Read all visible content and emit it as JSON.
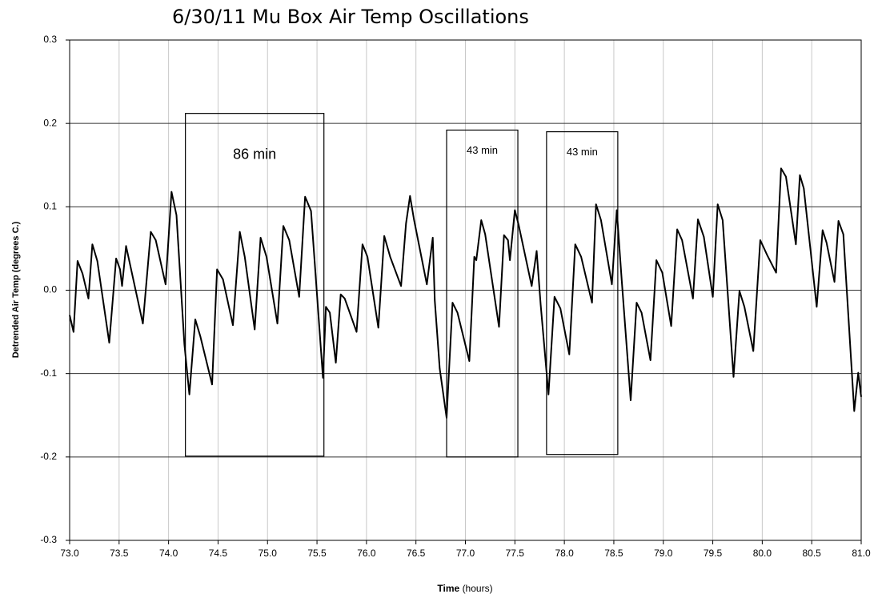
{
  "chart_data": {
    "type": "line",
    "title": "6/30/11 Mu Box Air Temp Oscillations",
    "xlabel": [
      "Time",
      "(hours)"
    ],
    "ylabel": "Detrended Air Temp (degrees C.)",
    "xlim": [
      73.0,
      81.0
    ],
    "ylim": [
      -0.3,
      0.3
    ],
    "xticks": [
      {
        "value": 73,
        "label": "73.0"
      },
      73.5,
      {
        "value": 74,
        "label": "74.0"
      },
      74.5,
      {
        "value": 75,
        "label": "75.0"
      },
      75.5,
      {
        "value": 76,
        "label": "76.0"
      },
      76.5,
      {
        "value": 77,
        "label": "77.0"
      },
      77.5,
      {
        "value": 78,
        "label": "78.0"
      },
      78.5,
      {
        "value": 79,
        "label": "79.0"
      },
      79.5,
      {
        "value": 80,
        "label": "80.0"
      },
      80.5,
      {
        "value": 81,
        "label": "81.0"
      }
    ],
    "yticks": [
      -0.3,
      -0.2,
      -0.1,
      {
        "value": 0,
        "label": "0.0"
      },
      0.1,
      0.2,
      0.3
    ],
    "grid": true,
    "series": [
      {
        "color": "#000000",
        "x": [
          73.0,
          73.04,
          73.08,
          73.13,
          73.19,
          73.23,
          73.28,
          73.4,
          73.47,
          73.51,
          73.53,
          73.57,
          73.74,
          73.82,
          73.87,
          73.97,
          74.03,
          74.08,
          74.16,
          74.21,
          74.27,
          74.32,
          74.44,
          74.49,
          74.55,
          74.65,
          74.72,
          74.77,
          74.87,
          74.93,
          74.99,
          75.1,
          75.16,
          75.22,
          75.32,
          75.38,
          75.44,
          75.56,
          75.59,
          75.63,
          75.69,
          75.74,
          75.78,
          75.9,
          75.96,
          76.01,
          76.12,
          76.18,
          76.24,
          76.35,
          76.4,
          76.44,
          76.48,
          76.61,
          76.67,
          76.69,
          76.74,
          76.81,
          76.87,
          76.92,
          77.04,
          77.09,
          77.11,
          77.16,
          77.2,
          77.34,
          77.39,
          77.43,
          77.45,
          77.5,
          77.54,
          77.67,
          77.72,
          77.76,
          77.84,
          77.9,
          77.96,
          78.05,
          78.11,
          78.17,
          78.28,
          78.32,
          78.37,
          78.48,
          78.53,
          78.58,
          78.67,
          78.73,
          78.78,
          78.87,
          78.93,
          78.99,
          79.08,
          79.14,
          79.19,
          79.3,
          79.35,
          79.41,
          79.5,
          79.55,
          79.6,
          79.71,
          79.77,
          79.82,
          79.91,
          79.98,
          80.05,
          80.14,
          80.19,
          80.24,
          80.34,
          80.38,
          80.42,
          80.55,
          80.61,
          80.65,
          80.73,
          80.77,
          80.82,
          80.93,
          80.97,
          81.0
        ],
        "values": [
          -0.03,
          -0.05,
          0.035,
          0.02,
          -0.01,
          0.055,
          0.035,
          -0.063,
          0.038,
          0.025,
          0.005,
          0.053,
          -0.04,
          0.07,
          0.06,
          0.007,
          0.118,
          0.09,
          -0.065,
          -0.125,
          -0.035,
          -0.055,
          -0.113,
          0.025,
          0.013,
          -0.042,
          0.07,
          0.04,
          -0.047,
          0.063,
          0.04,
          -0.04,
          0.077,
          0.06,
          -0.008,
          0.112,
          0.095,
          -0.105,
          -0.02,
          -0.027,
          -0.087,
          -0.005,
          -0.01,
          -0.05,
          0.055,
          0.04,
          -0.045,
          0.065,
          0.04,
          0.005,
          0.08,
          0.113,
          0.085,
          0.007,
          0.063,
          -0.012,
          -0.094,
          -0.153,
          -0.015,
          -0.027,
          -0.085,
          0.04,
          0.036,
          0.084,
          0.067,
          -0.044,
          0.066,
          0.06,
          0.036,
          0.096,
          0.077,
          0.005,
          0.047,
          -0.017,
          -0.125,
          -0.008,
          -0.022,
          -0.077,
          0.055,
          0.04,
          -0.015,
          0.103,
          0.084,
          0.007,
          0.096,
          0.012,
          -0.132,
          -0.015,
          -0.027,
          -0.084,
          0.036,
          0.021,
          -0.043,
          0.073,
          0.06,
          -0.01,
          0.085,
          0.064,
          -0.008,
          0.103,
          0.084,
          -0.104,
          -0.001,
          -0.02,
          -0.073,
          0.06,
          0.042,
          0.021,
          0.146,
          0.136,
          0.055,
          0.138,
          0.122,
          -0.02,
          0.072,
          0.057,
          0.01,
          0.083,
          0.067,
          -0.145,
          -0.099,
          -0.128
        ]
      }
    ],
    "annotations": [
      {
        "text": "86 min",
        "x": [
          74.17,
          75.57
        ],
        "y": [
          -0.199,
          0.212
        ]
      },
      {
        "text": "43 min",
        "x": [
          76.81,
          77.53
        ],
        "y": [
          -0.2,
          0.192
        ]
      },
      {
        "text": "43 min",
        "x": [
          77.82,
          78.54
        ],
        "y": [
          -0.197,
          0.19
        ]
      }
    ]
  }
}
